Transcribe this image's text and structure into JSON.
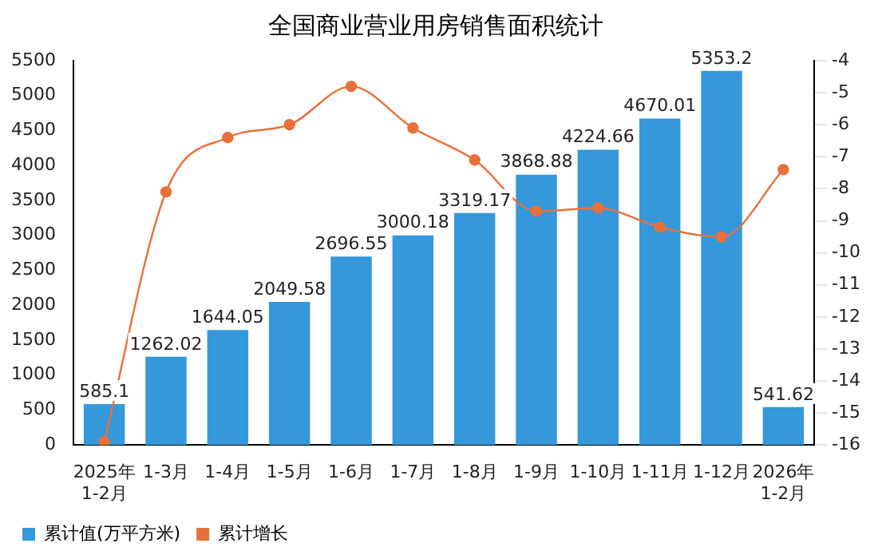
{
  "chart_data": {
    "type": "bar",
    "title": "全国商业营业用房销售面积统计",
    "categories": [
      "2025年\n1-2月",
      "1-3月",
      "1-4月",
      "1-5月",
      "1-6月",
      "1-7月",
      "1-8月",
      "1-9月",
      "1-10月",
      "1-11月",
      "1-12月",
      "2026年\n1-2月"
    ],
    "series": [
      {
        "name": "累计值(万平方米)",
        "color": "#3498db",
        "values": [
          585.1,
          1262.02,
          1644.05,
          2049.58,
          2696.55,
          3000.18,
          3319.17,
          3868.88,
          4224.66,
          4670.01,
          5353.2,
          541.62
        ],
        "value_labels": [
          "585.1",
          "1262.02",
          "1644.05",
          "2049.58",
          "2696.55",
          "3000.18",
          "3319.17",
          "3868.88",
          "4224.66",
          "4670.01",
          "5353.2",
          "541.62"
        ]
      },
      {
        "name": "累计增长",
        "type": "line",
        "axis": "y2",
        "color": "#e8703a",
        "marker": "circle",
        "values": [
          -15.9,
          -8.1,
          -6.4,
          -6.0,
          -4.8,
          -6.1,
          -7.1,
          -8.7,
          -8.6,
          -9.2,
          -9.5,
          -7.4
        ]
      }
    ],
    "ylim": [
      0,
      5500
    ],
    "yticks": [
      0,
      500,
      1000,
      1500,
      2000,
      2500,
      3000,
      3500,
      4000,
      4500,
      5000,
      5500
    ],
    "y2lim": [
      -16,
      -4
    ],
    "y2ticks": [
      -16,
      -15,
      -14,
      -13,
      -12,
      -11,
      -10,
      -9,
      -8,
      -7,
      -6,
      -5,
      -4
    ],
    "grid": false,
    "legend": "bottom left"
  }
}
